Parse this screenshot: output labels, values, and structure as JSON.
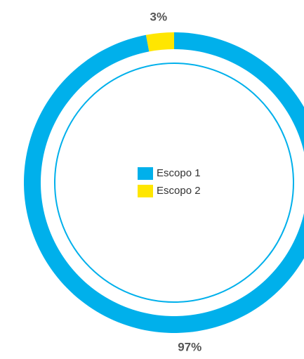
{
  "chart_data": {
    "type": "donut",
    "categories": [
      "Escopo 1",
      "Escopo 2"
    ],
    "values": [
      97,
      3
    ],
    "value_labels": [
      "97%",
      "3%"
    ],
    "colors": [
      "#00b0eb",
      "#ffe600"
    ]
  }
}
